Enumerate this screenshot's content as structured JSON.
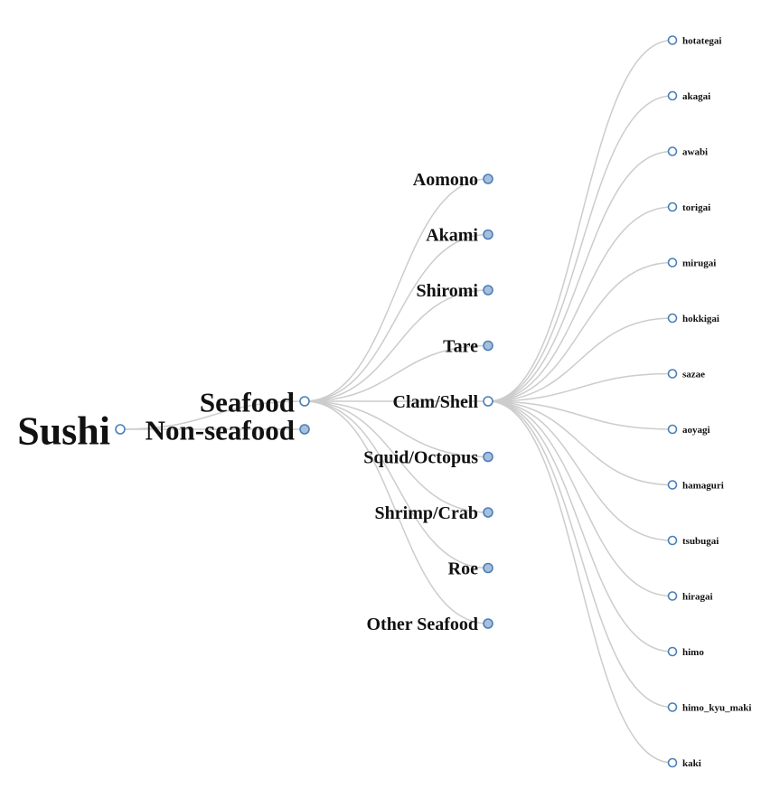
{
  "tree": {
    "name": "Sushi",
    "state": "expanded",
    "children": [
      {
        "name": "Seafood",
        "state": "expanded",
        "children": [
          {
            "name": "Aomono",
            "state": "collapsed"
          },
          {
            "name": "Akami",
            "state": "collapsed"
          },
          {
            "name": "Shiromi",
            "state": "collapsed"
          },
          {
            "name": "Tare",
            "state": "collapsed"
          },
          {
            "name": "Clam/Shell",
            "state": "expanded",
            "children": [
              {
                "name": "hotategai",
                "state": "leaf"
              },
              {
                "name": "akagai",
                "state": "leaf"
              },
              {
                "name": "awabi",
                "state": "leaf"
              },
              {
                "name": "torigai",
                "state": "leaf"
              },
              {
                "name": "mirugai",
                "state": "leaf"
              },
              {
                "name": "hokkigai",
                "state": "leaf"
              },
              {
                "name": "sazae",
                "state": "leaf"
              },
              {
                "name": "aoyagi",
                "state": "leaf"
              },
              {
                "name": "hamaguri",
                "state": "leaf"
              },
              {
                "name": "tsubugai",
                "state": "leaf"
              },
              {
                "name": "hiragai",
                "state": "leaf"
              },
              {
                "name": "himo",
                "state": "leaf"
              },
              {
                "name": "himo_kyu_maki",
                "state": "leaf"
              },
              {
                "name": "kaki",
                "state": "leaf"
              }
            ]
          },
          {
            "name": "Squid/Octopus",
            "state": "collapsed"
          },
          {
            "name": "Shrimp/Crab",
            "state": "collapsed"
          },
          {
            "name": "Roe",
            "state": "collapsed"
          },
          {
            "name": "Other Seafood",
            "state": "collapsed"
          }
        ]
      },
      {
        "name": "Non-seafood",
        "state": "collapsed"
      }
    ]
  },
  "colors": {
    "link": "#cccccc",
    "node_stroke": "#4a7fb8",
    "collapsed_fill": "#a8bfdc",
    "expanded_fill": "#ffffff"
  }
}
